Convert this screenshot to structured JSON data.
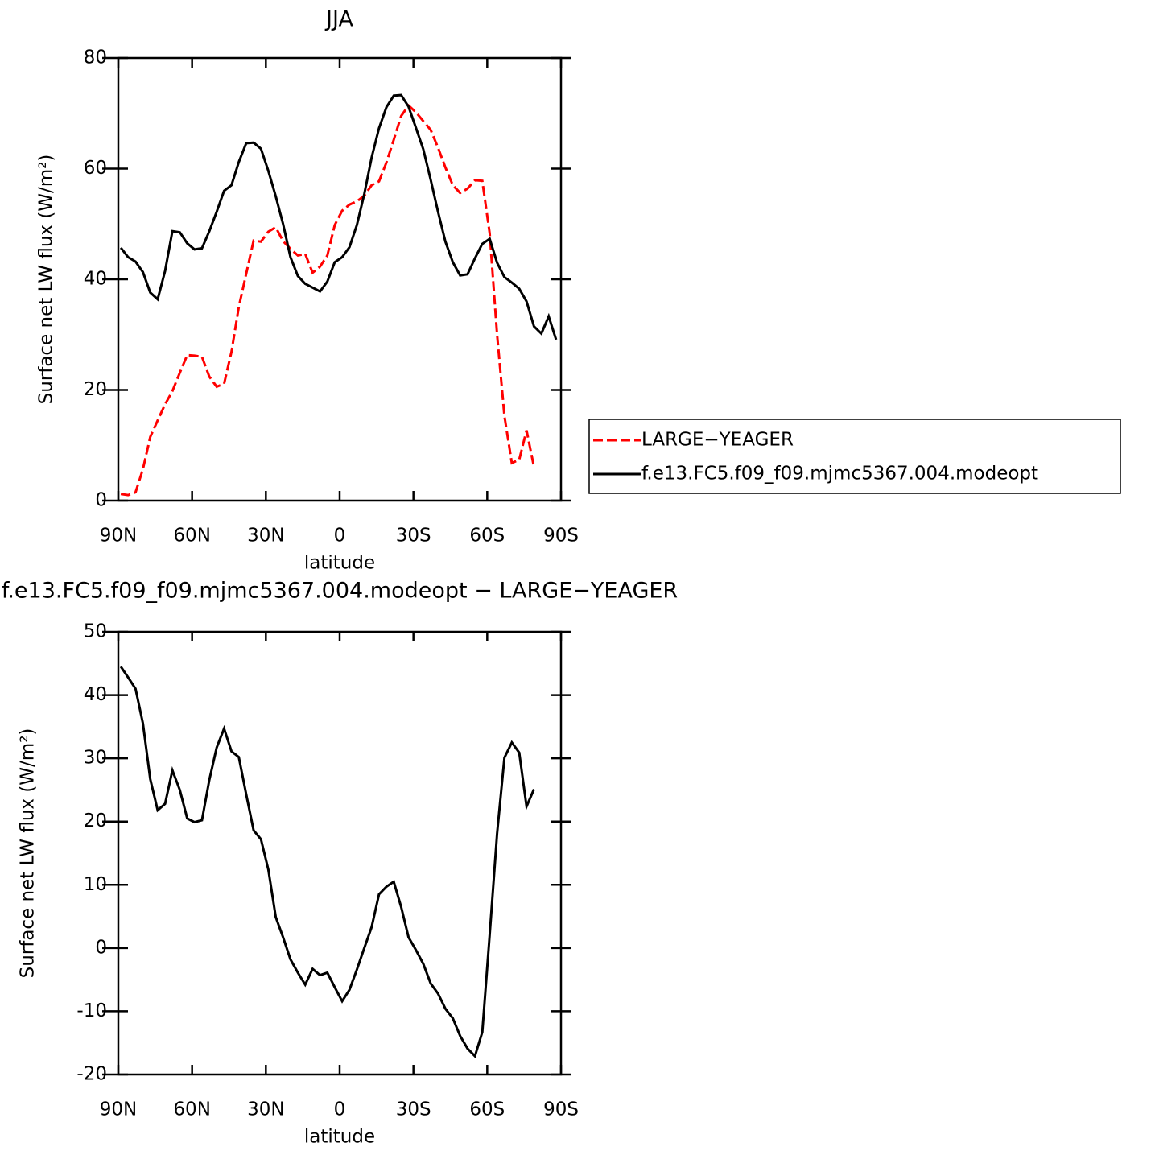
{
  "chart_data": [
    {
      "type": "line",
      "title": "JJA",
      "xlabel": "latitude",
      "ylabel": "Surface net LW flux (W/m²)",
      "x": [
        89,
        86,
        83,
        80,
        77,
        74,
        71,
        68,
        65,
        62,
        59,
        56,
        53,
        50,
        47,
        44,
        41,
        38,
        35,
        32,
        29,
        26,
        23,
        20,
        17,
        14,
        11,
        8,
        5,
        2,
        -1,
        -4,
        -7,
        -10,
        -13,
        -16,
        -19,
        -22,
        -25,
        -28,
        -31,
        -34,
        -37,
        -40,
        -43,
        -46,
        -49,
        -52,
        -55,
        -58,
        -61,
        -64,
        -67,
        -70,
        -73,
        -76,
        -79,
        -82,
        -85,
        -88
      ],
      "series": [
        {
          "name": "LARGE−YEAGER",
          "color": "#ff0000",
          "style": "dashed",
          "values": [
            1.2,
            1.0,
            1.5,
            5.7,
            11.5,
            14.5,
            17.4,
            19.8,
            23.1,
            26.3,
            26.2,
            26.0,
            22.4,
            20.6,
            21.1,
            26.9,
            35.0,
            41.0,
            47.0,
            46.8,
            48.6,
            49.4,
            46.9,
            45.5,
            44.3,
            44.6,
            41.2,
            42.3,
            44.3,
            49.8,
            52.4,
            53.5,
            54.1,
            55.1,
            57.0,
            57.7,
            61.1,
            65.2,
            69.5,
            71.4,
            70.2,
            68.6,
            67.0,
            63.8,
            60.2,
            57.0,
            55.6,
            56.4,
            57.9,
            57.8,
            48.3,
            30.0,
            15.3,
            6.8,
            7.4,
            12.7,
            6.1,
            null,
            null,
            null
          ]
        },
        {
          "name": "f.e13.FC5.f09_f09.mjmc5367.004.modeopt",
          "color": "#000000",
          "style": "solid",
          "values": [
            45.7,
            44.0,
            43.2,
            41.3,
            37.6,
            36.4,
            41.5,
            48.7,
            48.5,
            46.5,
            45.4,
            45.6,
            48.7,
            52.2,
            56.0,
            57.0,
            61.2,
            64.6,
            64.7,
            63.6,
            59.6,
            55.0,
            50.0,
            44.0,
            40.6,
            39.2,
            38.5,
            37.8,
            39.6,
            43.1,
            44.0,
            45.8,
            49.8,
            55.4,
            62.0,
            67.3,
            71.1,
            73.2,
            73.3,
            71.2,
            67.4,
            63.5,
            58.0,
            52.2,
            46.8,
            43.1,
            40.7,
            40.9,
            43.8,
            46.4,
            47.3,
            43.0,
            40.4,
            39.4,
            38.3,
            36.0,
            31.5,
            30.2,
            33.3,
            29.1
          ]
        }
      ],
      "xlim": [
        90,
        -90
      ],
      "ylim": [
        0,
        80
      ],
      "xticks": [
        {
          "value": 90,
          "label": "90N"
        },
        {
          "value": 60,
          "label": "60N"
        },
        {
          "value": 30,
          "label": "30N"
        },
        0,
        {
          "value": -30,
          "label": "30S"
        },
        {
          "value": -60,
          "label": "60S"
        },
        {
          "value": -90,
          "label": "90S"
        }
      ],
      "yticks": [
        0,
        20,
        40,
        60,
        80
      ],
      "legend": "right"
    },
    {
      "type": "line",
      "title": "f.e13.FC5.f09_f09.mjmc5367.004.modeopt − LARGE−YEAGER",
      "xlabel": "latitude",
      "ylabel": "Surface net LW flux (W/m²)",
      "x": [
        89,
        86,
        83,
        80,
        77,
        74,
        71,
        68,
        65,
        62,
        59,
        56,
        53,
        50,
        47,
        44,
        41,
        38,
        35,
        32,
        29,
        26,
        23,
        20,
        17,
        14,
        11,
        8,
        5,
        2,
        -1,
        -4,
        -7,
        -10,
        -13,
        -16,
        -19,
        -22,
        -25,
        -28,
        -31,
        -34,
        -37,
        -40,
        -43,
        -46,
        -49,
        -52,
        -55,
        -58,
        -61,
        -64,
        -67,
        -70,
        -73,
        -76,
        -79,
        -82,
        -85,
        -88
      ],
      "series": [
        {
          "color": "#000000",
          "style": "solid",
          "values": [
            44.5,
            42.8,
            41.0,
            35.5,
            26.7,
            21.8,
            22.8,
            28.1,
            25.0,
            20.5,
            19.9,
            20.2,
            26.6,
            31.7,
            34.7,
            31.1,
            30.2,
            24.3,
            18.6,
            17.2,
            12.4,
            4.9,
            1.7,
            -1.8,
            -3.9,
            -5.8,
            -3.3,
            -4.3,
            -3.9,
            -6.2,
            -8.4,
            -6.6,
            -3.4,
            0.0,
            3.3,
            8.5,
            9.7,
            10.5,
            6.5,
            1.7,
            -0.3,
            -2.5,
            -5.6,
            -7.2,
            -9.6,
            -11.1,
            -13.9,
            -15.9,
            -17.1,
            -13.3,
            2.1,
            18.1,
            30.1,
            32.5,
            30.9,
            22.4,
            25.1,
            null,
            null,
            null
          ]
        }
      ],
      "xlim": [
        90,
        -90
      ],
      "ylim": [
        -20,
        50
      ],
      "xticks": [
        {
          "value": 90,
          "label": "90N"
        },
        {
          "value": 60,
          "label": "60N"
        },
        {
          "value": 30,
          "label": "30N"
        },
        0,
        {
          "value": -30,
          "label": "30S"
        },
        {
          "value": -60,
          "label": "60S"
        },
        {
          "value": -90,
          "label": "90S"
        }
      ],
      "yticks": [
        -20,
        -10,
        0,
        10,
        20,
        30,
        40,
        50
      ]
    }
  ]
}
